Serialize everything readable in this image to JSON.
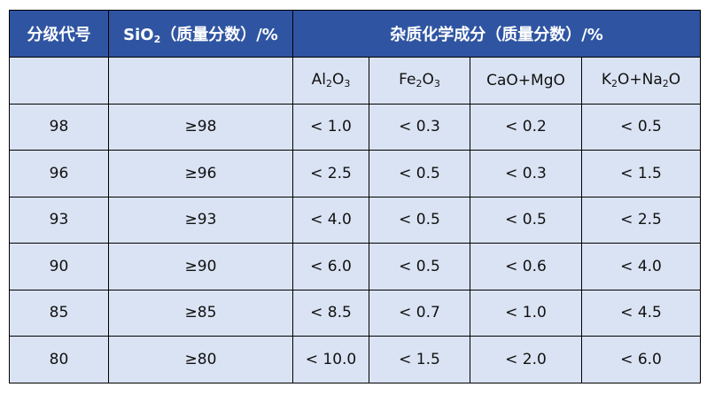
{
  "header": {
    "grade": "分级代号",
    "sio2_prefix": "SiO",
    "sio2_sub": "2",
    "sio2_suffix": "（质量分数）/%",
    "impurities": "杂质化学成分（质量分数）/%"
  },
  "subheader": [
    {
      "parts": [
        "Al",
        "2",
        "O",
        "3",
        ""
      ]
    },
    {
      "parts": [
        "Fe",
        "2",
        "O",
        "3",
        ""
      ]
    },
    {
      "text": "CaO+MgO"
    },
    {
      "parts": [
        "K",
        "2",
        "O+Na",
        "2",
        "O"
      ]
    }
  ],
  "rows": [
    [
      "98",
      "≥98",
      "< 1.0",
      "< 0.3",
      "< 0.2",
      "< 0.5"
    ],
    [
      "96",
      "≥96",
      "< 2.5",
      "< 0.5",
      "< 0.3",
      "< 1.5"
    ],
    [
      "93",
      "≥93",
      "< 4.0",
      "< 0.5",
      "< 0.5",
      "< 2.5"
    ],
    [
      "90",
      "≥90",
      "< 6.0",
      "< 0.5",
      "< 0.6",
      "< 4.0"
    ],
    [
      "85",
      "≥85",
      "< 8.5",
      "< 0.7",
      "< 1.0",
      "< 4.5"
    ],
    [
      "80",
      "≥80",
      "< 10.0",
      "< 1.5",
      "< 2.0",
      "< 6.0"
    ]
  ],
  "colors": {
    "header_bg": "#2F55A2",
    "cell_bg": "#DAE3F3"
  }
}
